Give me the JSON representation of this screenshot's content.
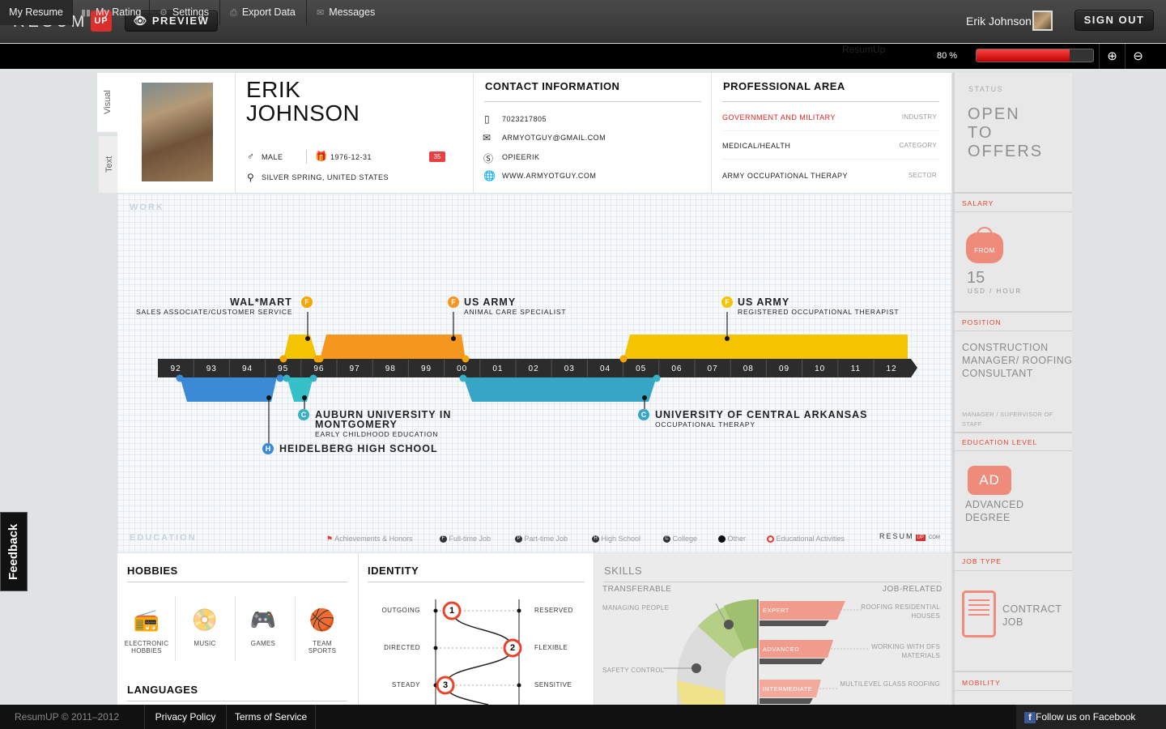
{
  "header": {
    "logo": "RESUM",
    "logo_badge": "UP",
    "preview": "PREVIEW",
    "user_name": "Erik Johnson",
    "sign_out": "SIGN OUT"
  },
  "nav": {
    "items": [
      "My Resume",
      "My Rating",
      "Settings",
      "Export Data",
      "Messages"
    ],
    "ghost": "ResumUp",
    "percent": "80 %",
    "progress": 0.8
  },
  "tabs": {
    "visual": "Visual",
    "text": "Text"
  },
  "profile": {
    "first": "ERIK",
    "last": "JOHNSON",
    "gender": "MALE",
    "birth": "1976-12-31",
    "age": "35",
    "location": "SILVER SPRING, UNITED STATES"
  },
  "contact": {
    "title": "CONTACT INFORMATION",
    "phone": "7023217805",
    "email": "ARMYOTGUY@GMAIL.COM",
    "skype": "OPIEERIK",
    "web": "WWW.ARMYOTGUY.COM"
  },
  "professional": {
    "title": "PROFESSIONAL AREA",
    "rows": [
      {
        "value": "GOVERNMENT AND MILITARY",
        "label": "INDUSTRY"
      },
      {
        "value": "MEDICAL/HEALTH",
        "label": "CATEGORY"
      },
      {
        "value": "ARMY OCCUPATIONAL THERAPY",
        "label": "SECTOR"
      }
    ]
  },
  "timeline": {
    "work_label": "WORK",
    "edu_label": "EDUCATION",
    "years": [
      "92",
      "93",
      "94",
      "95",
      "96",
      "97",
      "98",
      "99",
      "00",
      "01",
      "02",
      "03",
      "04",
      "05",
      "06",
      "07",
      "08",
      "09",
      "10",
      "11",
      "12"
    ],
    "jobs": [
      {
        "title": "WAL*MART",
        "sub": "SALES ASSOCIATE/CUSTOMER SERVICE",
        "badge": "F"
      },
      {
        "title": "US ARMY",
        "sub": "ANIMAL CARE SPECIALIST",
        "badge": "F"
      },
      {
        "title": "US ARMY",
        "sub": "REGISTERED OCCUPATIONAL THERAPIST",
        "badge": "F"
      }
    ],
    "education": [
      {
        "title1": "AUBURN UNIVERSITY IN",
        "title2": "MONTGOMERY",
        "sub": "EARLY CHILDHOOD EDUCATION",
        "badge": "C"
      },
      {
        "title1": "HEIDELBERG HIGH SCHOOL",
        "badge": "H"
      },
      {
        "title1": "UNIVERSITY OF CENTRAL ARKANSAS",
        "sub": "OCCUPATIONAL THERAPY",
        "badge": "C"
      }
    ],
    "legend": [
      "Achievements & Honors",
      "Full-time Job",
      "Part-time Job",
      "High School",
      "College",
      "Other",
      "Educational Activities"
    ],
    "legend_badges": [
      "F",
      "P",
      "H",
      "C"
    ],
    "brand": "RESUM",
    "brand_badge": "UP",
    "brand_suffix": "COM"
  },
  "hobbies": {
    "title": "HOBBIES",
    "items": [
      "ELECTRONIC HOBBIES",
      "MUSIC",
      "GAMES",
      "TEAM SPORTS"
    ],
    "languages_title": "LANGUAGES"
  },
  "identity": {
    "title": "IDENTITY",
    "rows": [
      {
        "left": "OUTGOING",
        "right": "RESERVED",
        "n": "1"
      },
      {
        "left": "DIRECTED",
        "right": "FLEXIBLE",
        "n": "2"
      },
      {
        "left": "STEADY",
        "right": "SENSITIVE",
        "n": "3"
      }
    ]
  },
  "skills": {
    "title": "SKILLS",
    "transferable": "TRANSFERABLE",
    "job_related": "JOB-RELATED",
    "t_items": [
      "MANAGING PEOPLE",
      "SAFETY CONTROL"
    ],
    "levels": [
      "EXPERT",
      "ADVANCED",
      "INTERMEDIATE"
    ],
    "j_items": [
      "ROOFING RESIDENTIAL HOUSES",
      "WORKING WITH DFS MATERIALS",
      "MULTILEVEL GLASS ROOFING"
    ],
    "j_item_lines": [
      [
        "ROOFING RESIDENTIAL",
        "HOUSES"
      ],
      [
        "WORKING WITH DFS",
        "MATERIALS"
      ],
      [
        "MULTILEVEL GLASS ROOFING"
      ]
    ]
  },
  "sidebar": {
    "status_label": "STATUS",
    "status": [
      "OPEN",
      "TO",
      "OFFERS"
    ],
    "salary_label": "SALARY",
    "salary_from": "FROM",
    "salary_value": "15",
    "salary_unit": "USD / HOUR",
    "position_label": "POSITION",
    "position": [
      "CONSTRUCTION",
      "MANAGER/ ROOFING",
      "CONSULTANT"
    ],
    "position_sub": [
      "MANAGER / SUPERVISOR OF",
      "STAFF"
    ],
    "education_label": "EDUCATION LEVEL",
    "edu_badge": "AD",
    "edu_text": [
      "ADVANCED",
      "DEGREE"
    ],
    "jobtype_label": "JOB TYPE",
    "jobtype": [
      "CONTRACT",
      "JOB"
    ],
    "mobility_label": "MOBILITY"
  },
  "footer": {
    "copyright": "ResumUP © 2011–2012",
    "privacy": "Privacy Policy",
    "terms": "Terms of Service",
    "facebook": "Follow us on Facebook"
  },
  "feedback": "Feedback",
  "colors": {
    "accent": "#e9432a",
    "orange": "#f5961e",
    "yellow": "#f5c400",
    "blue": "#3b7fce",
    "teal": "#36b2c4"
  }
}
